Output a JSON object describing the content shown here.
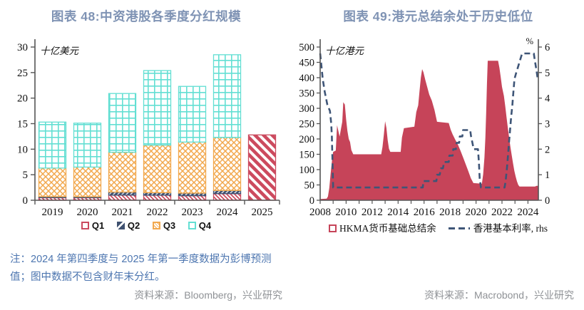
{
  "colors": {
    "title": "#7f93b4",
    "note": "#4d76b0",
    "source": "#8f9296",
    "axis_text": "#111111",
    "q1_red": "#cb4a5f",
    "q2_navy": "#3f5170",
    "q3_orange": "#f2a84d",
    "q4_cyan": "#63dfd3",
    "area_red": "#c64459",
    "rate_navy": "#3e5577"
  },
  "left_panel": {
    "title": "图表 48:中资港股各季度分红规模",
    "note_line1": "注：2024 年第四季度与 2025 年第一季度数据为彭博预测",
    "note_line2": "值；图中数据不包含财年末分红。",
    "source": "资料来源：Bloomberg，兴业研究"
  },
  "right_panel": {
    "title": "图表 49:港元总结余处于历史低位",
    "source": "资料来源：Macrobond，兴业研究"
  },
  "chart_data": [
    {
      "type": "bar",
      "stacked": true,
      "title": "图表 48:中资港股各季度分红规模",
      "unit_label": "十亿美元",
      "categories": [
        "2019",
        "2020",
        "2021",
        "2022",
        "2023",
        "2024",
        "2025"
      ],
      "series": [
        {
          "name": "Q1",
          "color": "#cb4a5f",
          "pattern": "red-diagonal-stripe",
          "values": [
            0.5,
            0.5,
            1.0,
            1.0,
            0.9,
            1.3,
            12.8
          ]
        },
        {
          "name": "Q2",
          "color": "#3f5170",
          "pattern": "navy-diagonal-stripe",
          "values": [
            0.2,
            0.2,
            0.6,
            0.5,
            0.5,
            0.6,
            0
          ]
        },
        {
          "name": "Q3",
          "color": "#f2a84d",
          "pattern": "orange-crosshatch",
          "values": [
            5.6,
            5.8,
            7.8,
            9.3,
            10.0,
            10.4,
            0
          ]
        },
        {
          "name": "Q4",
          "color": "#63dfd3",
          "pattern": "cyan-grid",
          "values": [
            9.0,
            8.6,
            11.5,
            14.6,
            10.9,
            16.2,
            0
          ]
        }
      ],
      "forecast_categories": [
        "2025"
      ],
      "ylim": [
        0,
        30
      ],
      "yticks": [
        0,
        5,
        10,
        15,
        20,
        25,
        30
      ],
      "grid": false,
      "legend_position": "bottom"
    },
    {
      "type": "area+line",
      "title": "图表 49:港元总结余处于历史低位",
      "left_axis": {
        "label": "十亿港元",
        "range": [
          0,
          500
        ],
        "ticks": [
          0,
          50,
          100,
          150,
          200,
          250,
          300,
          350,
          400,
          450,
          500
        ]
      },
      "right_axis": {
        "label": "%",
        "range": [
          0,
          6
        ],
        "ticks": [
          0,
          1,
          2,
          3,
          4,
          5,
          6
        ]
      },
      "x_axis": {
        "range": [
          2008,
          2024.8
        ],
        "tick_labels": [
          "2008",
          "2010",
          "2012",
          "2014",
          "2016",
          "2018",
          "2020",
          "2022",
          "2024"
        ],
        "minor_tick_every": 1
      },
      "series": [
        {
          "name": "HKMA货币基础总结余",
          "type": "area",
          "axis": "left",
          "color": "#c64459",
          "points": [
            [
              2008.0,
              4
            ],
            [
              2008.5,
              5
            ],
            [
              2008.6,
              12
            ],
            [
              2008.7,
              40
            ],
            [
              2008.8,
              85
            ],
            [
              2008.9,
              125
            ],
            [
              2009.0,
              158
            ],
            [
              2009.2,
              162
            ],
            [
              2009.3,
              245
            ],
            [
              2009.4,
              226
            ],
            [
              2009.5,
              208
            ],
            [
              2009.6,
              232
            ],
            [
              2009.7,
              256
            ],
            [
              2009.78,
              320
            ],
            [
              2009.9,
              312
            ],
            [
              2010.0,
              264
            ],
            [
              2010.1,
              226
            ],
            [
              2010.2,
              200
            ],
            [
              2010.3,
              190
            ],
            [
              2010.4,
              164
            ],
            [
              2010.55,
              150
            ],
            [
              2012.7,
              150
            ],
            [
              2012.8,
              174
            ],
            [
              2012.9,
              214
            ],
            [
              2013.0,
              258
            ],
            [
              2013.1,
              236
            ],
            [
              2013.2,
              196
            ],
            [
              2013.3,
              168
            ],
            [
              2013.4,
              158
            ],
            [
              2014.2,
              158
            ],
            [
              2014.3,
              205
            ],
            [
              2014.45,
              235
            ],
            [
              2015.25,
              240
            ],
            [
              2015.4,
              288
            ],
            [
              2015.55,
              310
            ],
            [
              2015.65,
              355
            ],
            [
              2015.75,
              400
            ],
            [
              2015.85,
              428
            ],
            [
              2015.95,
              418
            ],
            [
              2016.1,
              392
            ],
            [
              2016.25,
              368
            ],
            [
              2016.4,
              345
            ],
            [
              2016.6,
              325
            ],
            [
              2016.8,
              295
            ],
            [
              2017.0,
              256
            ],
            [
              2017.9,
              252
            ],
            [
              2018.05,
              230
            ],
            [
              2018.2,
              215
            ],
            [
              2018.4,
              198
            ],
            [
              2018.6,
              182
            ],
            [
              2018.8,
              162
            ],
            [
              2019.0,
              140
            ],
            [
              2019.2,
              118
            ],
            [
              2019.4,
              96
            ],
            [
              2019.6,
              72
            ],
            [
              2019.8,
              56
            ],
            [
              2020.45,
              54
            ],
            [
              2020.55,
              85
            ],
            [
              2020.65,
              140
            ],
            [
              2020.72,
              205
            ],
            [
              2020.78,
              285
            ],
            [
              2020.84,
              380
            ],
            [
              2020.9,
              455
            ],
            [
              2021.7,
              455
            ],
            [
              2021.8,
              432
            ],
            [
              2021.9,
              402
            ],
            [
              2022.0,
              370
            ],
            [
              2022.15,
              340
            ],
            [
              2022.25,
              306
            ],
            [
              2022.35,
              270
            ],
            [
              2022.45,
              236
            ],
            [
              2022.55,
              205
            ],
            [
              2022.65,
              174
            ],
            [
              2022.75,
              146
            ],
            [
              2022.85,
              120
            ],
            [
              2022.95,
              96
            ],
            [
              2023.05,
              78
            ],
            [
              2023.15,
              62
            ],
            [
              2023.25,
              50
            ],
            [
              2023.35,
              45
            ],
            [
              2024.55,
              45
            ],
            [
              2024.65,
              47
            ],
            [
              2024.8,
              47
            ]
          ]
        },
        {
          "name": "香港基本利率, rhs",
          "type": "dashed-line",
          "axis": "right",
          "color": "#3e5577",
          "points": [
            [
              2008.0,
              5.75
            ],
            [
              2008.1,
              5.25
            ],
            [
              2008.2,
              4.75
            ],
            [
              2008.35,
              4.25
            ],
            [
              2008.55,
              3.75
            ],
            [
              2008.75,
              3.5
            ],
            [
              2008.85,
              3.0
            ],
            [
              2008.9,
              2.5
            ],
            [
              2008.95,
              1.5
            ],
            [
              2009.0,
              0.5
            ],
            [
              2015.9,
              0.5
            ],
            [
              2015.95,
              0.75
            ],
            [
              2016.95,
              0.75
            ],
            [
              2017.0,
              1.0
            ],
            [
              2017.2,
              1.0
            ],
            [
              2017.3,
              1.25
            ],
            [
              2017.45,
              1.25
            ],
            [
              2017.55,
              1.5
            ],
            [
              2017.9,
              1.5
            ],
            [
              2017.95,
              1.75
            ],
            [
              2018.2,
              1.75
            ],
            [
              2018.25,
              2.0
            ],
            [
              2018.45,
              2.0
            ],
            [
              2018.5,
              2.25
            ],
            [
              2018.7,
              2.25
            ],
            [
              2018.75,
              2.5
            ],
            [
              2018.95,
              2.5
            ],
            [
              2019.0,
              2.75
            ],
            [
              2019.55,
              2.75
            ],
            [
              2019.62,
              2.5
            ],
            [
              2019.72,
              2.25
            ],
            [
              2019.82,
              2.0
            ],
            [
              2020.15,
              2.0
            ],
            [
              2020.22,
              1.5
            ],
            [
              2020.28,
              0.86
            ],
            [
              2020.38,
              0.5
            ],
            [
              2022.2,
              0.5
            ],
            [
              2022.28,
              0.75
            ],
            [
              2022.38,
              1.25
            ],
            [
              2022.46,
              1.75
            ],
            [
              2022.54,
              2.25
            ],
            [
              2022.62,
              2.75
            ],
            [
              2022.7,
              3.25
            ],
            [
              2022.8,
              3.75
            ],
            [
              2022.88,
              4.25
            ],
            [
              2022.96,
              4.75
            ],
            [
              2023.1,
              5.0
            ],
            [
              2023.25,
              5.25
            ],
            [
              2023.4,
              5.5
            ],
            [
              2023.55,
              5.75
            ],
            [
              2024.45,
              5.75
            ],
            [
              2024.52,
              5.5
            ],
            [
              2024.6,
              5.25
            ],
            [
              2024.68,
              5.0
            ],
            [
              2024.75,
              4.75
            ],
            [
              2024.8,
              4.75
            ]
          ]
        }
      ],
      "legend_position": "bottom"
    }
  ]
}
